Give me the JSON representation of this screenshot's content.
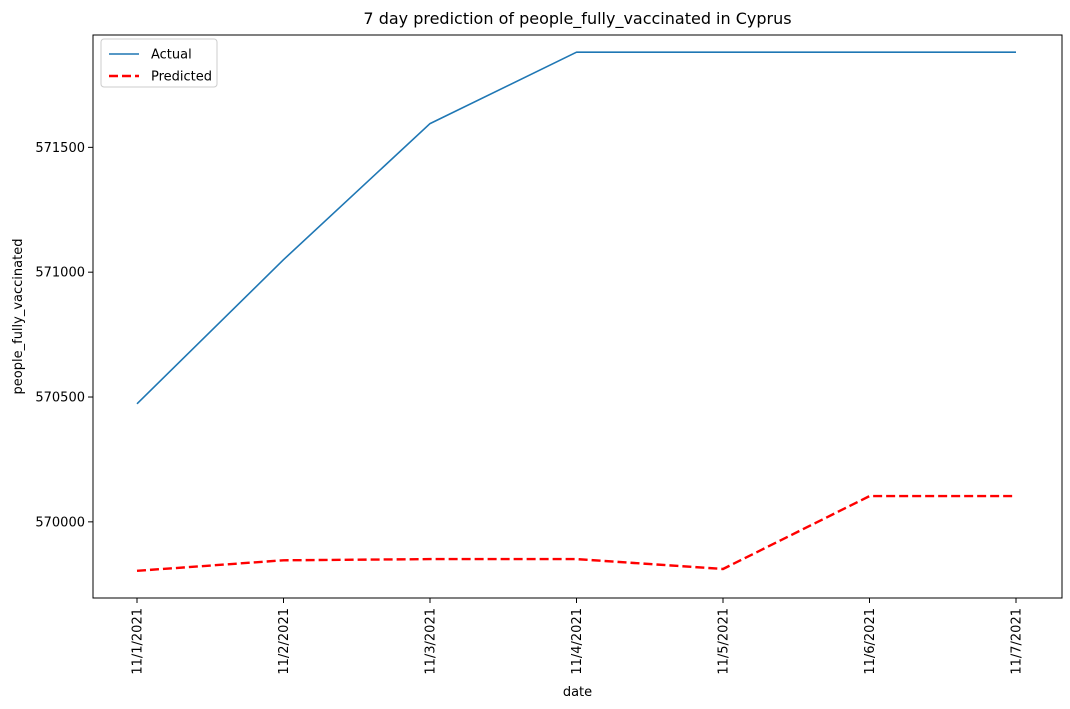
{
  "chart_data": {
    "type": "line",
    "title": "7 day prediction of people_fully_vaccinated in Cyprus",
    "xlabel": "date",
    "ylabel": "people_fully_vaccinated",
    "x": [
      "11/1/2021",
      "11/2/2021",
      "11/3/2021",
      "11/4/2021",
      "11/5/2021",
      "11/6/2021",
      "11/7/2021"
    ],
    "ylim": [
      569695,
      571950
    ],
    "yticks": [
      570000,
      570500,
      571000,
      571500
    ],
    "grid": false,
    "legend_position": "top-left",
    "series": [
      {
        "name": "Actual",
        "color": "#1f77b4",
        "style": "solid",
        "values": [
          570473,
          571050,
          571595,
          571881,
          571881,
          571881,
          571881
        ]
      },
      {
        "name": "Predicted",
        "color": "#ff0000",
        "style": "dashed",
        "values": [
          569804,
          569846,
          569851,
          569851,
          569811,
          570103,
          570103
        ]
      }
    ]
  }
}
